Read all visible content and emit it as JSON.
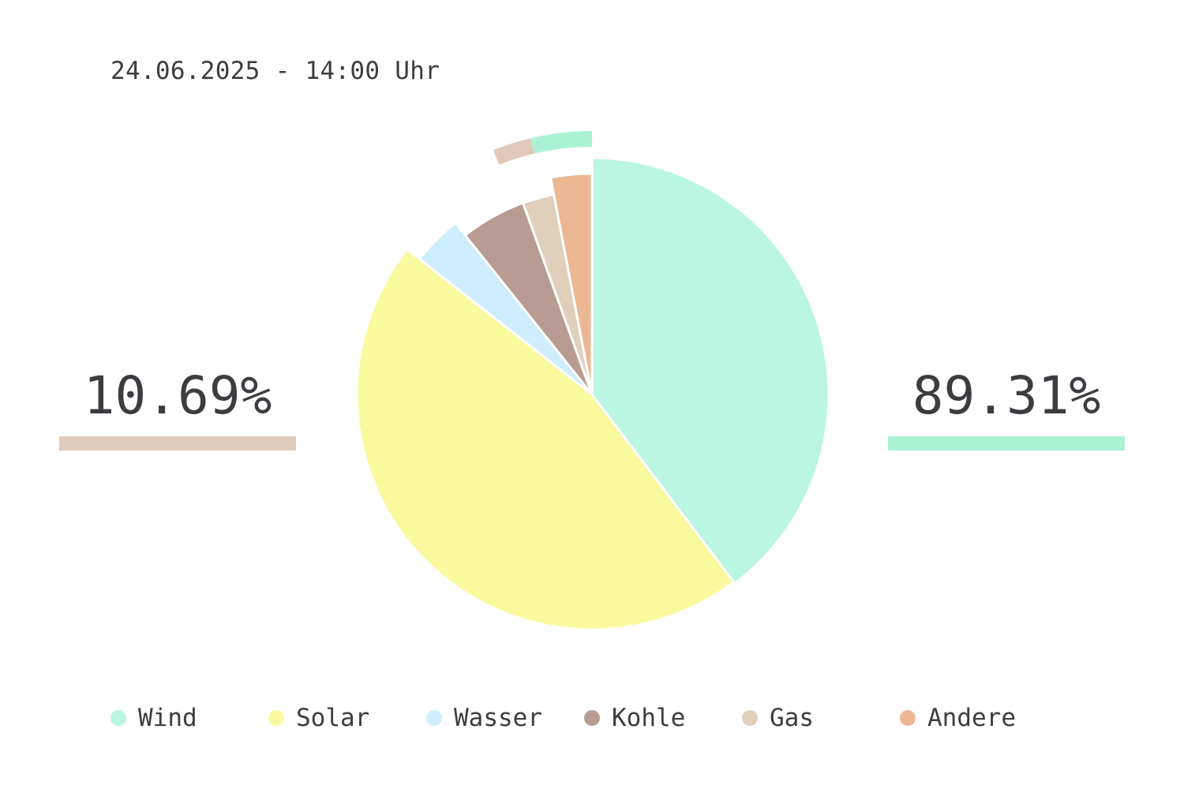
{
  "timestamp": "24.06.2025 - 14:00 Uhr",
  "summary": {
    "left": {
      "label": "10.69%",
      "value": 10.69,
      "color": "#e0cabc"
    },
    "right": {
      "label": "89.31%",
      "value": 89.31,
      "color": "#abf2d5"
    }
  },
  "chart_data": {
    "type": "pie",
    "categories": [
      "Wind",
      "Solar",
      "Wasser",
      "Kohle",
      "Gas",
      "Andere"
    ],
    "values": [
      39.7,
      45.9,
      3.7,
      5.2,
      2.5,
      3.0
    ],
    "colors": [
      "#baf6e2",
      "#f9fa9e",
      "#cfeefd",
      "#b89b91",
      "#e0cfbb",
      "#ecb893"
    ],
    "start_angle_deg": 0,
    "direction": "clockwise",
    "outer_ring": {
      "values": [
        89.31,
        10.69
      ],
      "colors": [
        "#abf2d5",
        "#e0c8ba"
      ]
    },
    "legend_position": "bottom"
  }
}
